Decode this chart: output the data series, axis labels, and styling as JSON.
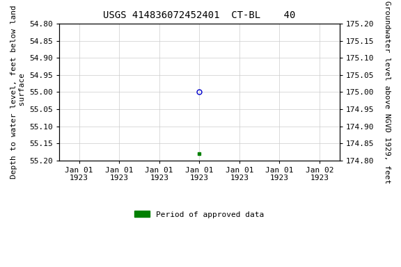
{
  "title": "USGS 414836072452401  CT-BL    40",
  "ylabel_left": "Depth to water level, feet below land\n surface",
  "ylabel_right": "Groundwater level above NGVD 1929, feet",
  "ylim_left": [
    54.8,
    55.2
  ],
  "ylim_right": [
    174.8,
    175.2
  ],
  "yticks_left": [
    54.8,
    54.85,
    54.9,
    54.95,
    55.0,
    55.05,
    55.1,
    55.15,
    55.2
  ],
  "yticks_right": [
    175.2,
    175.15,
    175.1,
    175.05,
    175.0,
    174.95,
    174.9,
    174.85,
    174.8
  ],
  "data_blue_x": 3.0,
  "data_blue_y": 55.0,
  "data_green_x": 3.0,
  "data_green_y": 55.18,
  "xtick_positions": [
    0,
    1,
    2,
    3,
    4,
    5,
    6
  ],
  "xtick_labels": [
    "Jan 01\n1923",
    "Jan 01\n1923",
    "Jan 01\n1923",
    "Jan 01\n1923",
    "Jan 01\n1923",
    "Jan 01\n1923",
    "Jan 02\n1923"
  ],
  "legend_label": "Period of approved data",
  "legend_color": "#008000",
  "grid_color": "#cccccc",
  "background_color": "#ffffff",
  "title_fontsize": 10,
  "axis_fontsize": 8,
  "tick_fontsize": 8,
  "xlim": [
    -0.5,
    6.5
  ]
}
